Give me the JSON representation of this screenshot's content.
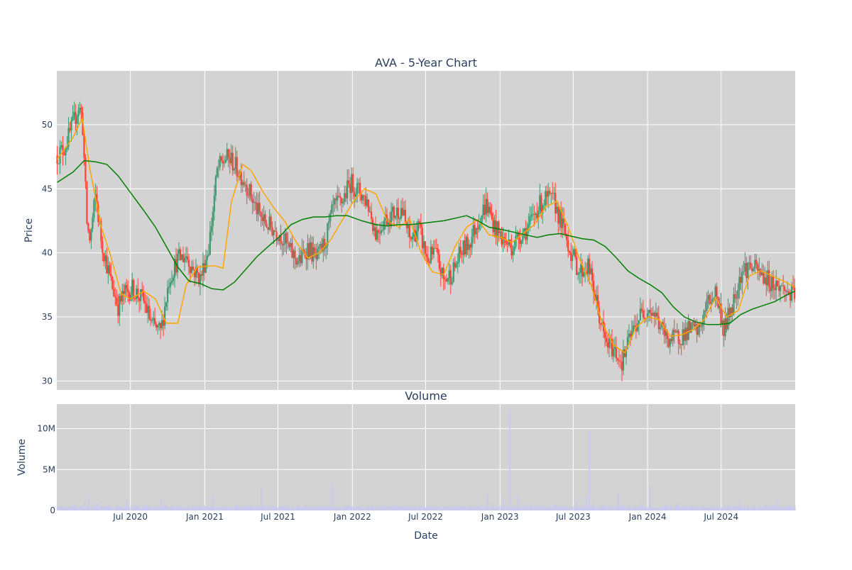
{
  "chart_data": [
    {
      "type": "candlestick",
      "title": "AVA - 5-Year Chart",
      "xlabel": "",
      "ylabel": "Price",
      "ylim": [
        29.3,
        54.2
      ],
      "xlim": [
        "2020-01-01",
        "2024-12-31"
      ],
      "yticks": [
        30,
        35,
        40,
        45,
        50
      ],
      "grid": true,
      "legend": "none",
      "colors": {
        "increasing": "#3d9970",
        "decreasing": "#ff4136",
        "ma_short": "#ffa500",
        "ma_long": "#008000",
        "plot_bg": "#d3d3d3",
        "grid": "#ffffff"
      },
      "series": [
        {
          "kind": "close",
          "x": [
            "2020-01-02",
            "2020-01-20",
            "2020-02-10",
            "2020-02-24",
            "2020-03-04",
            "2020-03-16",
            "2020-03-23",
            "2020-04-06",
            "2020-04-20",
            "2020-05-11",
            "2020-06-01",
            "2020-06-15",
            "2020-07-06",
            "2020-08-03",
            "2020-08-24",
            "2020-09-14",
            "2020-10-05",
            "2020-10-26",
            "2020-11-16",
            "2020-12-01",
            "2020-12-21",
            "2021-01-11",
            "2021-02-01",
            "2021-02-22",
            "2021-03-08",
            "2021-03-22",
            "2021-04-12",
            "2021-05-03",
            "2021-05-24",
            "2021-06-14",
            "2021-07-06",
            "2021-08-02",
            "2021-08-23",
            "2021-09-13",
            "2021-10-04",
            "2021-10-25",
            "2021-11-15",
            "2021-12-06",
            "2021-12-27",
            "2022-01-18",
            "2022-02-07",
            "2022-02-28",
            "2022-03-21",
            "2022-04-11",
            "2022-05-02",
            "2022-05-23",
            "2022-06-13",
            "2022-07-05",
            "2022-07-25",
            "2022-08-15",
            "2022-09-06",
            "2022-09-26",
            "2022-10-17",
            "2022-11-07",
            "2022-11-28",
            "2022-12-19",
            "2023-01-09",
            "2023-01-30",
            "2023-02-21",
            "2023-03-13",
            "2023-04-03",
            "2023-04-24",
            "2023-05-15",
            "2023-06-05",
            "2023-06-26",
            "2023-07-17",
            "2023-08-07",
            "2023-08-28",
            "2023-09-18",
            "2023-10-09",
            "2023-10-30",
            "2023-11-20",
            "2023-12-11",
            "2024-01-02",
            "2024-01-22",
            "2024-02-12",
            "2024-03-04",
            "2024-03-25",
            "2024-04-15",
            "2024-05-06",
            "2024-05-27",
            "2024-06-17",
            "2024-07-08",
            "2024-07-29",
            "2024-08-19",
            "2024-09-09",
            "2024-09-30",
            "2024-10-21",
            "2024-11-11",
            "2024-12-02",
            "2024-12-30"
          ],
          "y": [
            47.6,
            48.2,
            50.0,
            51.5,
            50.5,
            42.0,
            41.0,
            44.5,
            41.0,
            38.0,
            35.8,
            36.8,
            37.2,
            36.2,
            34.3,
            33.8,
            38.0,
            39.5,
            39.8,
            38.8,
            38.0,
            40.5,
            46.5,
            47.4,
            47.2,
            46.5,
            45.5,
            43.8,
            42.5,
            42.0,
            41.5,
            40.0,
            39.3,
            40.5,
            39.4,
            40.8,
            43.5,
            44.0,
            45.5,
            44.8,
            44.0,
            41.5,
            42.6,
            43.0,
            43.5,
            41.0,
            42.0,
            39.5,
            40.0,
            37.8,
            38.5,
            40.0,
            40.8,
            42.5,
            43.8,
            42.0,
            41.0,
            40.5,
            41.5,
            42.0,
            43.5,
            44.2,
            44.0,
            42.0,
            40.0,
            38.5,
            39.0,
            36.0,
            33.0,
            32.5,
            31.5,
            33.5,
            35.0,
            35.8,
            35.0,
            33.5,
            33.2,
            33.6,
            34.0,
            33.8,
            36.0,
            37.0,
            34.0,
            36.0,
            38.5,
            39.0,
            38.5,
            38.0,
            37.5,
            37.2,
            36.5
          ]
        },
        {
          "kind": "moving_average_short",
          "x": [
            "2020-01-02",
            "2020-02-10",
            "2020-03-04",
            "2020-03-23",
            "2020-04-20",
            "2020-05-11",
            "2020-06-08",
            "2020-07-01",
            "2020-08-03",
            "2020-09-01",
            "2020-09-28",
            "2020-10-26",
            "2020-11-16",
            "2020-12-14",
            "2021-01-25",
            "2021-02-15",
            "2021-03-08",
            "2021-04-05",
            "2021-04-26",
            "2021-05-24",
            "2021-06-21",
            "2021-07-19",
            "2021-08-16",
            "2021-09-13",
            "2021-10-11",
            "2021-11-08",
            "2021-12-06",
            "2022-01-03",
            "2022-01-31",
            "2022-02-28",
            "2022-03-28",
            "2022-04-25",
            "2022-05-23",
            "2022-06-20",
            "2022-07-18",
            "2022-08-15",
            "2022-09-12",
            "2022-10-10",
            "2022-11-07",
            "2022-12-05",
            "2023-01-03",
            "2023-01-30",
            "2023-02-27",
            "2023-03-27",
            "2023-04-24",
            "2023-05-22",
            "2023-06-19",
            "2023-07-17",
            "2023-08-14",
            "2023-09-11",
            "2023-10-09",
            "2023-11-06",
            "2023-12-04",
            "2024-01-02",
            "2024-01-29",
            "2024-02-26",
            "2024-03-25",
            "2024-04-22",
            "2024-05-20",
            "2024-06-17",
            "2024-07-15",
            "2024-08-12",
            "2024-09-09",
            "2024-10-07",
            "2024-11-04",
            "2024-12-02",
            "2024-12-30"
          ],
          "y": [
            47.3,
            49.0,
            50.5,
            46.5,
            42.0,
            40.0,
            36.8,
            36.4,
            37.0,
            36.4,
            34.5,
            34.5,
            37.5,
            38.9,
            39.0,
            38.8,
            44.0,
            46.9,
            46.4,
            44.8,
            43.5,
            42.4,
            40.8,
            39.6,
            40.0,
            41.0,
            42.5,
            44.0,
            45.0,
            44.6,
            42.5,
            42.0,
            42.6,
            40.0,
            38.5,
            38.3,
            40.5,
            42.0,
            42.6,
            41.4,
            41.2,
            40.8,
            41.5,
            42.2,
            43.6,
            44.0,
            42.0,
            39.5,
            37.5,
            34.5,
            32.8,
            32.2,
            34.2,
            35.0,
            34.8,
            33.5,
            33.6,
            34.0,
            34.8,
            36.5,
            35.0,
            35.5,
            38.2,
            38.6,
            38.2,
            37.8,
            37.3
          ]
        },
        {
          "kind": "moving_average_long",
          "x": [
            "2020-01-02",
            "2020-02-10",
            "2020-03-09",
            "2020-04-06",
            "2020-05-04",
            "2020-06-01",
            "2020-07-06",
            "2020-08-03",
            "2020-09-01",
            "2020-09-28",
            "2020-10-26",
            "2020-11-23",
            "2020-12-21",
            "2021-01-18",
            "2021-02-15",
            "2021-03-15",
            "2021-04-12",
            "2021-05-10",
            "2021-06-07",
            "2021-07-06",
            "2021-08-02",
            "2021-08-30",
            "2021-09-27",
            "2021-10-25",
            "2021-11-22",
            "2021-12-20",
            "2022-01-24",
            "2022-02-28",
            "2022-03-28",
            "2022-04-25",
            "2022-05-23",
            "2022-06-20",
            "2022-07-18",
            "2022-08-15",
            "2022-09-12",
            "2022-10-10",
            "2022-11-07",
            "2022-12-05",
            "2023-01-09",
            "2023-02-06",
            "2023-03-06",
            "2023-04-03",
            "2023-05-01",
            "2023-05-30",
            "2023-06-26",
            "2023-07-24",
            "2023-08-21",
            "2023-09-18",
            "2023-10-16",
            "2023-11-13",
            "2023-12-11",
            "2024-01-08",
            "2024-02-05",
            "2024-03-04",
            "2024-04-01",
            "2024-04-29",
            "2024-05-28",
            "2024-06-24",
            "2024-07-22",
            "2024-08-19",
            "2024-09-16",
            "2024-10-14",
            "2024-11-11",
            "2024-12-09",
            "2024-12-30"
          ],
          "y": [
            45.5,
            46.3,
            47.2,
            47.1,
            46.9,
            46.0,
            44.5,
            43.3,
            42.0,
            40.5,
            38.9,
            37.8,
            37.6,
            37.2,
            37.1,
            37.7,
            38.7,
            39.7,
            40.5,
            41.3,
            42.2,
            42.6,
            42.8,
            42.8,
            42.9,
            42.9,
            42.5,
            42.2,
            42.1,
            42.2,
            42.2,
            42.3,
            42.4,
            42.5,
            42.7,
            42.9,
            42.5,
            42.0,
            41.8,
            41.6,
            41.4,
            41.2,
            41.4,
            41.5,
            41.3,
            41.1,
            41.0,
            40.5,
            39.6,
            38.6,
            38.0,
            37.5,
            36.9,
            35.8,
            35.0,
            34.6,
            34.4,
            34.4,
            34.5,
            35.2,
            35.6,
            35.9,
            36.2,
            36.7,
            37.0
          ]
        }
      ]
    },
    {
      "type": "bar",
      "title": "Volume",
      "xlabel": "Date",
      "ylabel": "Volume",
      "ylim": [
        0,
        13000000
      ],
      "yticks": [
        0,
        5000000,
        10000000
      ],
      "ytick_labels": [
        "0",
        "5M",
        "10M"
      ],
      "xtick_labels": [
        "Jul 2020",
        "Jan 2021",
        "Jul 2021",
        "Jan 2022",
        "Jul 2022",
        "Jan 2023",
        "Jul 2023",
        "Jan 2024",
        "Jul 2024"
      ],
      "xticks": [
        "2020-07-01",
        "2021-01-01",
        "2021-07-01",
        "2022-01-01",
        "2022-07-01",
        "2023-01-01",
        "2023-07-01",
        "2024-01-01",
        "2024-07-01"
      ],
      "bar_color": "#c8c8f0",
      "series": [
        {
          "kind": "volume",
          "x": [
            "2020-01-15",
            "2020-02-15",
            "2020-03-10",
            "2020-03-20",
            "2020-04-10",
            "2020-05-10",
            "2020-06-22",
            "2020-07-15",
            "2020-08-20",
            "2020-09-15",
            "2020-09-25",
            "2020-10-20",
            "2020-11-20",
            "2020-12-15",
            "2021-01-20",
            "2021-02-20",
            "2021-03-20",
            "2021-04-15",
            "2021-05-21",
            "2021-06-20",
            "2021-07-20",
            "2021-08-20",
            "2021-09-20",
            "2021-10-20",
            "2021-11-11",
            "2021-12-17",
            "2022-01-20",
            "2022-02-20",
            "2022-03-18",
            "2022-04-20",
            "2022-05-20",
            "2022-06-17",
            "2022-07-20",
            "2022-08-20",
            "2022-09-16",
            "2022-10-20",
            "2022-11-15",
            "2022-12-01",
            "2022-12-16",
            "2023-01-10",
            "2023-01-25",
            "2023-02-15",
            "2023-03-17",
            "2023-04-20",
            "2023-05-19",
            "2023-06-16",
            "2023-07-10",
            "2023-08-02",
            "2023-08-10",
            "2023-08-20",
            "2023-09-15",
            "2023-10-20",
            "2023-11-17",
            "2023-12-15",
            "2024-01-08",
            "2024-02-15",
            "2024-03-15",
            "2024-04-19",
            "2024-05-17",
            "2024-06-21",
            "2024-07-19",
            "2024-08-16",
            "2024-09-20",
            "2024-10-18",
            "2024-11-15",
            "2024-12-20"
          ],
          "y": [
            400000,
            700000,
            1200000,
            1600000,
            900000,
            600000,
            1200000,
            500000,
            450000,
            1300000,
            600000,
            400000,
            500000,
            450000,
            1900000,
            500000,
            700000,
            600000,
            2800000,
            500000,
            400000,
            450000,
            500000,
            600000,
            3300000,
            500000,
            450000,
            500000,
            700000,
            500000,
            600000,
            500000,
            450000,
            500000,
            550000,
            500000,
            700000,
            2000000,
            900000,
            1500000,
            12200000,
            1800000,
            900000,
            600000,
            700000,
            600000,
            1200000,
            1800000,
            9800000,
            1000000,
            700000,
            2100000,
            800000,
            900000,
            2900000,
            700000,
            800000,
            600000,
            500000,
            600000,
            700000,
            900000,
            600000,
            700000,
            1200000,
            600000
          ]
        }
      ]
    }
  ]
}
